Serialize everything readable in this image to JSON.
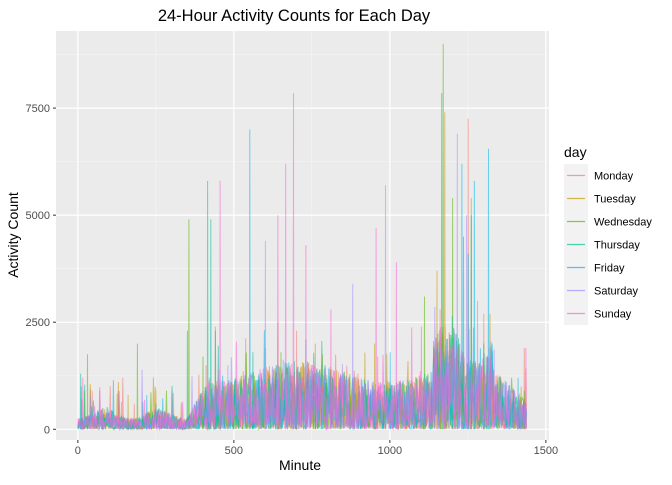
{
  "chart_data": {
    "type": "line",
    "title": "24-Hour Activity Counts for Each Day",
    "xlabel": "Minute",
    "ylabel": "Activity Count",
    "xlim": [
      -70,
      1510
    ],
    "ylim": [
      -250,
      9300
    ],
    "x_ticks": [
      0,
      500,
      1000,
      1500
    ],
    "y_ticks": [
      0,
      2500,
      5000,
      7500
    ],
    "grid": true,
    "legend": {
      "title": "day",
      "position": "right"
    },
    "series": [
      {
        "name": "Monday",
        "color": "#F8766D",
        "peaks": [
          [
            12,
            700
          ],
          [
            45,
            900
          ],
          [
            180,
            600
          ],
          [
            410,
            1500
          ],
          [
            600,
            1900
          ],
          [
            700,
            2300
          ],
          [
            960,
            1700
          ],
          [
            1160,
            2800
          ],
          [
            1250,
            7250
          ],
          [
            1300,
            2700
          ],
          [
            1430,
            1900
          ]
        ]
      },
      {
        "name": "Tuesday",
        "color": "#C49A00",
        "peaks": [
          [
            20,
            900
          ],
          [
            160,
            800
          ],
          [
            440,
            2400
          ],
          [
            640,
            2500
          ],
          [
            760,
            2000
          ],
          [
            950,
            2000
          ],
          [
            1150,
            3700
          ],
          [
            1175,
            7400
          ],
          [
            1260,
            5400
          ],
          [
            1320,
            2700
          ],
          [
            1420,
            1000
          ]
        ]
      },
      {
        "name": "Wednesday",
        "color": "#53B400",
        "peaks": [
          [
            30,
            1750
          ],
          [
            190,
            2000
          ],
          [
            355,
            4900
          ],
          [
            400,
            1700
          ],
          [
            650,
            1800
          ],
          [
            1110,
            3100
          ],
          [
            1170,
            9000
          ],
          [
            1200,
            5400
          ],
          [
            1300,
            2000
          ],
          [
            1430,
            900
          ]
        ]
      },
      {
        "name": "Thursday",
        "color": "#00C094",
        "peaks": [
          [
            8,
            1300
          ],
          [
            350,
            2300
          ],
          [
            415,
            5800
          ],
          [
            425,
            4900
          ],
          [
            560,
            1800
          ],
          [
            780,
            1500
          ],
          [
            1165,
            7850
          ],
          [
            1235,
            4500
          ],
          [
            1260,
            5000
          ],
          [
            1310,
            1500
          ]
        ]
      },
      {
        "name": "Friday",
        "color": "#00B6EB",
        "peaks": [
          [
            10,
            1000
          ],
          [
            220,
            800
          ],
          [
            440,
            2300
          ],
          [
            550,
            7000
          ],
          [
            730,
            2100
          ],
          [
            1000,
            1800
          ],
          [
            1230,
            6200
          ],
          [
            1250,
            4100
          ],
          [
            1270,
            5800
          ],
          [
            1315,
            6550
          ],
          [
            1410,
            1200
          ]
        ]
      },
      {
        "name": "Saturday",
        "color": "#A58AFF",
        "peaks": [
          [
            40,
            800
          ],
          [
            300,
            900
          ],
          [
            480,
            1500
          ],
          [
            600,
            4400
          ],
          [
            880,
            3400
          ],
          [
            985,
            5700
          ],
          [
            1215,
            6900
          ],
          [
            1245,
            5000
          ],
          [
            1280,
            3000
          ],
          [
            1380,
            1000
          ]
        ]
      },
      {
        "name": "Sunday",
        "color": "#FB61D7",
        "peaks": [
          [
            15,
            1200
          ],
          [
            130,
            900
          ],
          [
            455,
            5800
          ],
          [
            640,
            5000
          ],
          [
            665,
            6200
          ],
          [
            690,
            7850
          ],
          [
            730,
            4300
          ],
          [
            810,
            2800
          ],
          [
            955,
            4700
          ],
          [
            1020,
            3900
          ],
          [
            1100,
            2400
          ],
          [
            1435,
            1900
          ]
        ]
      }
    ]
  }
}
